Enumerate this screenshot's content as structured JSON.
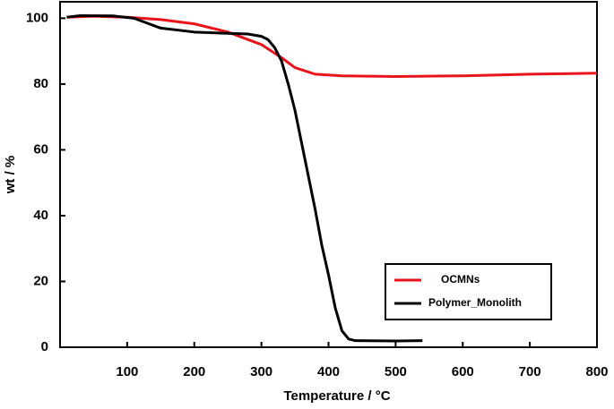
{
  "chart_data": {
    "type": "line",
    "xlabel": "Temperature / °C",
    "ylabel": "wt / %",
    "xlim": [
      0,
      800
    ],
    "ylim": [
      0,
      105
    ],
    "xticks": [
      100,
      200,
      300,
      400,
      500,
      600,
      700,
      800
    ],
    "yticks": [
      0,
      20,
      40,
      60,
      80,
      100
    ],
    "legend": "lower right",
    "series": [
      {
        "name": "OCMNs",
        "color": "#e8141c",
        "x": [
          10,
          50,
          100,
          150,
          200,
          250,
          300,
          330,
          350,
          380,
          420,
          500,
          600,
          700,
          800
        ],
        "values": [
          100.3,
          100.6,
          100.3,
          99.6,
          98.3,
          95.8,
          92,
          88,
          85,
          83,
          82.5,
          82.3,
          82.5,
          83,
          83.3
        ]
      },
      {
        "name": "Polymer_Monolith",
        "color": "#000000",
        "x": [
          10,
          30,
          80,
          110,
          130,
          150,
          200,
          250,
          280,
          300,
          310,
          320,
          330,
          340,
          350,
          360,
          370,
          380,
          390,
          400,
          410,
          420,
          430,
          440,
          500,
          540
        ],
        "values": [
          100.3,
          100.8,
          100.7,
          100,
          98.5,
          97,
          95.8,
          95.4,
          95.2,
          94.5,
          93.5,
          91,
          87,
          80,
          72,
          62,
          52,
          42,
          31,
          22,
          12,
          5,
          2.5,
          2.0,
          1.9,
          2.0
        ]
      }
    ]
  }
}
